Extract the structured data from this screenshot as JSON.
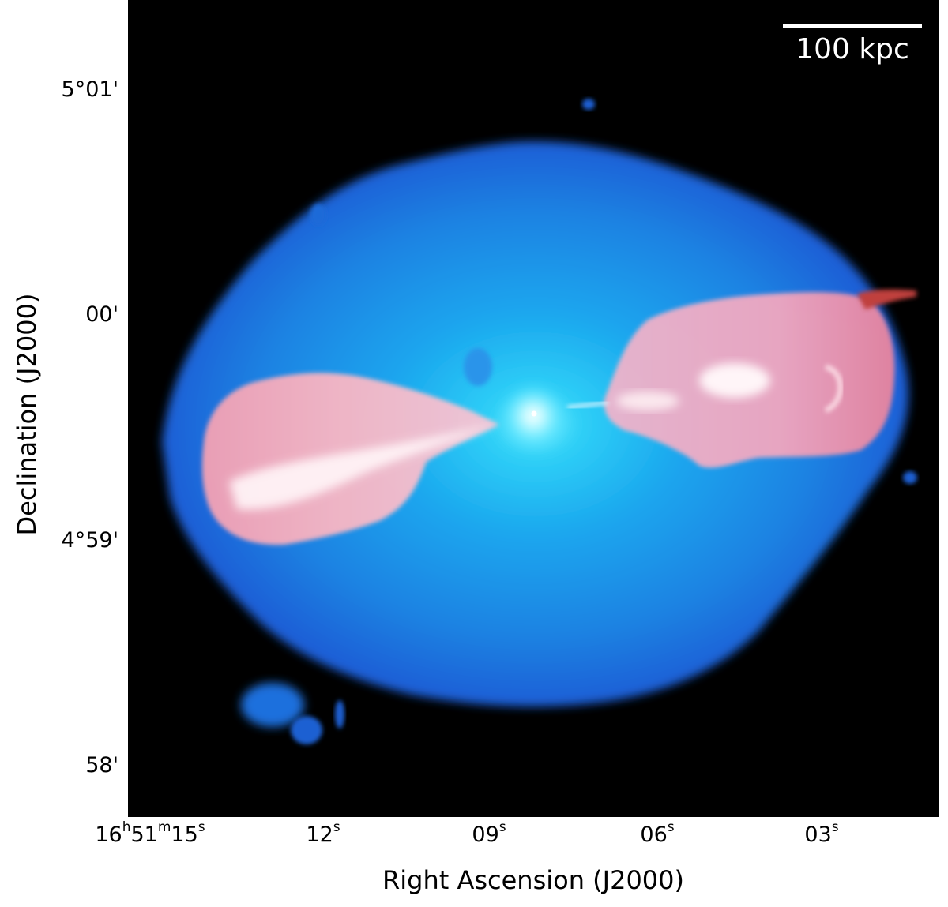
{
  "figure": {
    "xaxis_title": "Right Ascension (J2000)",
    "yaxis_title": "Declination (J2000)",
    "scale_bar_label": "100 kpc",
    "x_ticks": [
      {
        "h": "16",
        "m": "51",
        "s": "15"
      },
      {
        "s": "12"
      },
      {
        "s": "09"
      },
      {
        "s": "06"
      },
      {
        "s": "03"
      }
    ],
    "x_unit_h": "h",
    "x_unit_m": "m",
    "x_unit_s": "s",
    "y_ticks": [
      "5°01'",
      "00'",
      "4°59'",
      "58'"
    ],
    "colors": {
      "background": "#000000",
      "xray_halo": "#1e7fe0",
      "radio_lobes": "#f28aa8",
      "core": "#dffcff"
    }
  }
}
